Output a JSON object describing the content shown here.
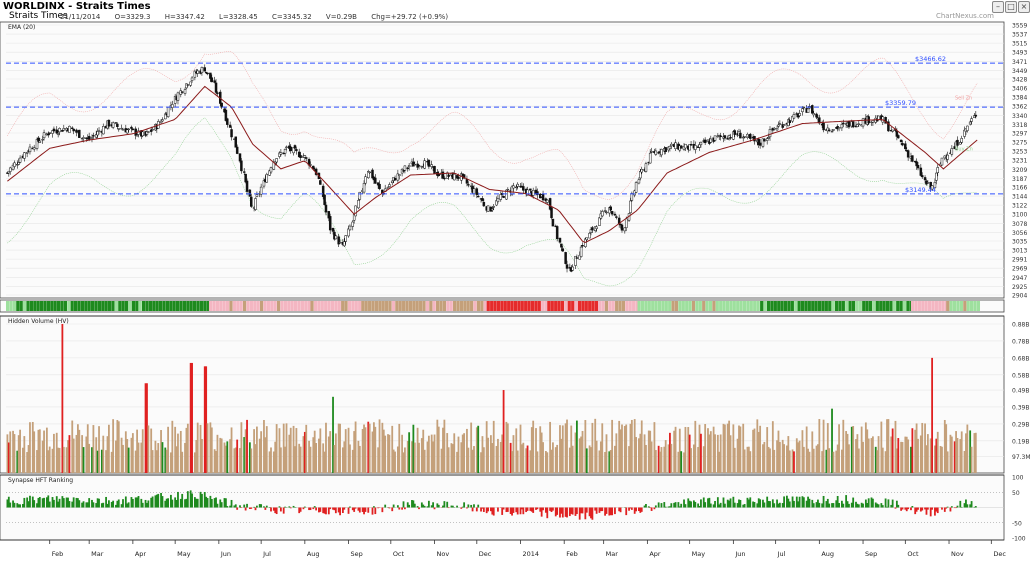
{
  "header": {
    "title": "WORLDINX - Straits Times",
    "symbol": "Straits Times",
    "date": "21/11/2014",
    "open": "O=3329.3",
    "high": "H=3347.42",
    "low": "L=3328.45",
    "close": "C=3345.32",
    "volume": "V=0.29B",
    "change": "Chg=+29.72 (+0.9%)",
    "brand": "ChartNexus.com",
    "buttons": [
      "minimize",
      "maximize",
      "close"
    ]
  },
  "panels": {
    "price": {
      "label": "EMA (20)"
    },
    "volume": {
      "label": "Hidden Volume (HV)"
    },
    "hft": {
      "label": "Synapse HFT Ranking"
    }
  },
  "chart_data": [
    {
      "type": "candlestick",
      "title": "EMA (20)",
      "ylim": [
        2904,
        3559
      ],
      "y_ticks": [
        "3559",
        "3537",
        "3515",
        "3493",
        "3471",
        "3449",
        "3428",
        "3406",
        "3384",
        "3362",
        "3340",
        "3318",
        "3297",
        "3275",
        "3253",
        "3231",
        "3209",
        "3187",
        "3166",
        "3144",
        "3122",
        "3100",
        "3078",
        "3056",
        "3035",
        "3013",
        "2991",
        "2969",
        "2947",
        "2925",
        "2904"
      ],
      "x_ticks": [
        "Feb",
        "Mar",
        "Apr",
        "May",
        "Jun",
        "Jul",
        "Aug",
        "Sep",
        "Oct",
        "Nov",
        "Dec",
        "2014",
        "Feb",
        "Mar",
        "Apr",
        "May",
        "Jun",
        "Jul",
        "Aug",
        "Sep",
        "Oct",
        "Nov",
        "Dec"
      ],
      "horizontal_lines": [
        {
          "label": "$3466.62",
          "value": 3466.62,
          "color": "#2f4fff"
        },
        {
          "label": "$3359.79",
          "value": 3359.79,
          "color": "#2f4fff"
        },
        {
          "label": "$3149.44",
          "value": 3149.44,
          "color": "#2f4fff"
        }
      ],
      "band_labels": [
        "Sell Zn",
        "Buy Zn"
      ],
      "close_series_approx": [
        [
          "2013-01-02",
          3200
        ],
        [
          "2013-01-15",
          3250
        ],
        [
          "2013-02-01",
          3300
        ],
        [
          "2013-02-15",
          3310
        ],
        [
          "2013-03-01",
          3280
        ],
        [
          "2013-03-15",
          3320
        ],
        [
          "2013-04-01",
          3300
        ],
        [
          "2013-04-10",
          3290
        ],
        [
          "2013-04-20",
          3320
        ],
        [
          "2013-05-01",
          3380
        ],
        [
          "2013-05-15",
          3440
        ],
        [
          "2013-05-22",
          3454
        ],
        [
          "2013-05-28",
          3420
        ],
        [
          "2013-06-05",
          3350
        ],
        [
          "2013-06-15",
          3250
        ],
        [
          "2013-06-25",
          3110
        ],
        [
          "2013-07-01",
          3160
        ],
        [
          "2013-07-10",
          3230
        ],
        [
          "2013-07-20",
          3260
        ],
        [
          "2013-08-01",
          3240
        ],
        [
          "2013-08-10",
          3200
        ],
        [
          "2013-08-20",
          3060
        ],
        [
          "2013-08-28",
          3020
        ],
        [
          "2013-09-05",
          3090
        ],
        [
          "2013-09-15",
          3210
        ],
        [
          "2013-09-25",
          3150
        ],
        [
          "2013-10-05",
          3190
        ],
        [
          "2013-10-15",
          3220
        ],
        [
          "2013-10-25",
          3225
        ],
        [
          "2013-11-05",
          3195
        ],
        [
          "2013-11-20",
          3190
        ],
        [
          "2013-12-01",
          3150
        ],
        [
          "2013-12-10",
          3110
        ],
        [
          "2013-12-18",
          3140
        ],
        [
          "2013-12-28",
          3168
        ],
        [
          "2014-01-10",
          3150
        ],
        [
          "2014-01-20",
          3140
        ],
        [
          "2014-01-28",
          3040
        ],
        [
          "2014-02-05",
          2960
        ],
        [
          "2014-02-15",
          3030
        ],
        [
          "2014-02-25",
          3080
        ],
        [
          "2014-03-05",
          3120
        ],
        [
          "2014-03-15",
          3060
        ],
        [
          "2014-03-25",
          3180
        ],
        [
          "2014-04-05",
          3250
        ],
        [
          "2014-04-20",
          3265
        ],
        [
          "2014-05-05",
          3260
        ],
        [
          "2014-05-20",
          3285
        ],
        [
          "2014-06-05",
          3295
        ],
        [
          "2014-06-20",
          3270
        ],
        [
          "2014-07-01",
          3310
        ],
        [
          "2014-07-15",
          3335
        ],
        [
          "2014-07-25",
          3360
        ],
        [
          "2014-08-05",
          3310
        ],
        [
          "2014-08-15",
          3310
        ],
        [
          "2014-08-25",
          3320
        ],
        [
          "2014-09-05",
          3330
        ],
        [
          "2014-09-15",
          3330
        ],
        [
          "2014-09-25",
          3290
        ],
        [
          "2014-10-05",
          3240
        ],
        [
          "2014-10-15",
          3180
        ],
        [
          "2014-10-20",
          3160
        ],
        [
          "2014-10-28",
          3240
        ],
        [
          "2014-11-05",
          3260
        ],
        [
          "2014-11-15",
          3315
        ],
        [
          "2014-11-21",
          3345.32
        ]
      ],
      "ema20_series_approx": [
        [
          "2013-01-02",
          3180
        ],
        [
          "2013-02-01",
          3260
        ],
        [
          "2013-03-01",
          3280
        ],
        [
          "2013-04-01",
          3295
        ],
        [
          "2013-05-01",
          3330
        ],
        [
          "2013-05-22",
          3410
        ],
        [
          "2013-06-10",
          3360
        ],
        [
          "2013-06-25",
          3270
        ],
        [
          "2013-07-15",
          3210
        ],
        [
          "2013-08-01",
          3230
        ],
        [
          "2013-08-20",
          3160
        ],
        [
          "2013-09-05",
          3100
        ],
        [
          "2013-09-20",
          3140
        ],
        [
          "2013-10-15",
          3195
        ],
        [
          "2013-11-15",
          3200
        ],
        [
          "2013-12-10",
          3160
        ],
        [
          "2014-01-05",
          3150
        ],
        [
          "2014-01-28",
          3110
        ],
        [
          "2014-02-15",
          3030
        ],
        [
          "2014-03-05",
          3060
        ],
        [
          "2014-03-25",
          3110
        ],
        [
          "2014-04-15",
          3200
        ],
        [
          "2014-05-15",
          3250
        ],
        [
          "2014-06-15",
          3280
        ],
        [
          "2014-07-20",
          3320
        ],
        [
          "2014-08-15",
          3325
        ],
        [
          "2014-09-15",
          3330
        ],
        [
          "2014-10-15",
          3250
        ],
        [
          "2014-10-28",
          3210
        ],
        [
          "2014-11-21",
          3280
        ]
      ]
    },
    {
      "type": "bar",
      "title": "Hidden Volume (HV)",
      "ylim": [
        0,
        0.88
      ],
      "y_ticks": [
        "0.88B",
        "0.78B",
        "0.68B",
        "0.58B",
        "0.49B",
        "0.39B",
        "0.29B",
        "0.19B",
        "97.3M"
      ],
      "colors": {
        "neutral": "#c4a07a",
        "up": "#1e8a1e",
        "down": "#e02020"
      },
      "notable_spikes": [
        [
          "2013-02-10",
          0.88,
          "down"
        ],
        [
          "2013-04-10",
          0.53,
          "down"
        ],
        [
          "2013-05-12",
          0.65,
          "down"
        ],
        [
          "2013-05-22",
          0.63,
          "down"
        ],
        [
          "2013-06-01",
          0.64,
          "down"
        ],
        [
          "2013-08-20",
          0.45,
          "up"
        ],
        [
          "2013-12-20",
          0.49,
          "down"
        ],
        [
          "2014-08-10",
          0.38,
          "up"
        ],
        [
          "2014-10-20",
          0.68,
          "down"
        ]
      ]
    },
    {
      "type": "bar",
      "title": "Synapse HFT Ranking",
      "ylim": [
        -100,
        100
      ],
      "y_ticks": [
        "100",
        "50",
        "-50",
        "-100"
      ],
      "colors": {
        "positive": "#1e8a1e",
        "negative": "#e02020"
      },
      "series_approx": [
        [
          "2013-01",
          25
        ],
        [
          "2013-02",
          30
        ],
        [
          "2013-03",
          22
        ],
        [
          "2013-04",
          30
        ],
        [
          "2013-05",
          45
        ],
        [
          "2013-06",
          5
        ],
        [
          "2013-07",
          -8
        ],
        [
          "2013-08",
          -10
        ],
        [
          "2013-09",
          -12
        ],
        [
          "2013-10",
          10
        ],
        [
          "2013-11",
          8
        ],
        [
          "2013-12",
          -15
        ],
        [
          "2014-01",
          -20
        ],
        [
          "2014-02",
          -30
        ],
        [
          "2014-03",
          -12
        ],
        [
          "2014-04",
          10
        ],
        [
          "2014-05",
          20
        ],
        [
          "2014-06",
          25
        ],
        [
          "2014-07",
          25
        ],
        [
          "2014-08",
          28
        ],
        [
          "2014-09",
          22
        ],
        [
          "2014-10",
          -20
        ],
        [
          "2014-11",
          15
        ]
      ]
    }
  ]
}
